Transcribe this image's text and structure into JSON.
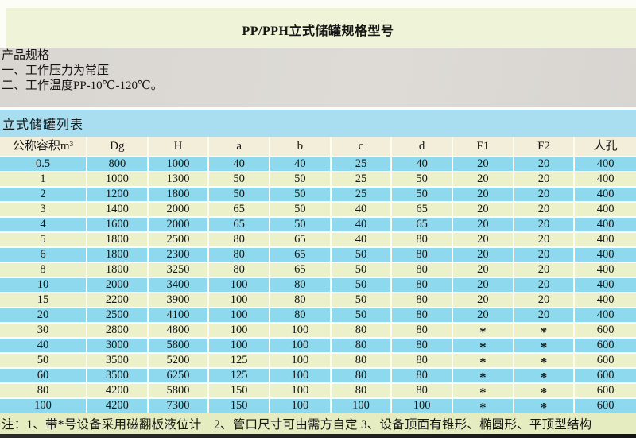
{
  "page": {
    "title": "PP/PPH立式储罐规格型号"
  },
  "product_spec": {
    "heading": "产品规格",
    "lines": [
      "一、工作压力为常压",
      "二、工作温度PP-10℃-120℃。"
    ]
  },
  "table_section": {
    "heading": "立式储罐列表",
    "columns": [
      "公称容积m³",
      "Dg",
      "H",
      "a",
      "b",
      "c",
      "d",
      "F1",
      "F2",
      "人孔"
    ],
    "rows": [
      [
        "0.5",
        "800",
        "1000",
        "40",
        "40",
        "25",
        "40",
        "20",
        "20",
        "400"
      ],
      [
        "1",
        "1000",
        "1300",
        "50",
        "50",
        "25",
        "50",
        "20",
        "20",
        "400"
      ],
      [
        "2",
        "1200",
        "1800",
        "50",
        "50",
        "25",
        "50",
        "20",
        "20",
        "400"
      ],
      [
        "3",
        "1400",
        "2000",
        "65",
        "50",
        "40",
        "65",
        "20",
        "20",
        "400"
      ],
      [
        "4",
        "1600",
        "2000",
        "65",
        "50",
        "40",
        "65",
        "20",
        "20",
        "400"
      ],
      [
        "5",
        "1800",
        "2500",
        "80",
        "65",
        "40",
        "80",
        "20",
        "20",
        "400"
      ],
      [
        "6",
        "1800",
        "2300",
        "80",
        "65",
        "50",
        "80",
        "20",
        "20",
        "400"
      ],
      [
        "8",
        "1800",
        "3250",
        "80",
        "65",
        "50",
        "80",
        "20",
        "20",
        "400"
      ],
      [
        "10",
        "2000",
        "3400",
        "100",
        "80",
        "50",
        "80",
        "20",
        "20",
        "400"
      ],
      [
        "15",
        "2200",
        "3900",
        "100",
        "80",
        "50",
        "80",
        "20",
        "20",
        "400"
      ],
      [
        "20",
        "2500",
        "4100",
        "100",
        "80",
        "50",
        "80",
        "20",
        "20",
        "400"
      ],
      [
        "30",
        "2800",
        "4800",
        "100",
        "100",
        "80",
        "80",
        "*",
        "*",
        "600"
      ],
      [
        "40",
        "3000",
        "5800",
        "100",
        "100",
        "80",
        "80",
        "*",
        "*",
        "600"
      ],
      [
        "50",
        "3500",
        "5200",
        "125",
        "100",
        "80",
        "80",
        "*",
        "*",
        "600"
      ],
      [
        "60",
        "3500",
        "6250",
        "125",
        "100",
        "80",
        "80",
        "*",
        "*",
        "600"
      ],
      [
        "80",
        "4200",
        "5800",
        "150",
        "100",
        "80",
        "80",
        "*",
        "*",
        "600"
      ],
      [
        "100",
        "4200",
        "7300",
        "150",
        "100",
        "100",
        "100",
        "*",
        "*",
        "600"
      ]
    ]
  },
  "footnote": "注：1、带*号设备采用磁翻板液位计　2、管口尺寸可由需方自定 3、设备顶面有锥形、椭圆形、平顶型结构",
  "colors": {
    "title_band": "#eff3d7",
    "spec_band": "#d9d6d1",
    "banner_blue": "#a9def0",
    "header_cream": "#f3eeda",
    "row_blue": "#8fd9ef",
    "row_yellow": "#edf1ca",
    "sep_white": "#fbfcf2",
    "note_band": "#e5ecc0"
  }
}
